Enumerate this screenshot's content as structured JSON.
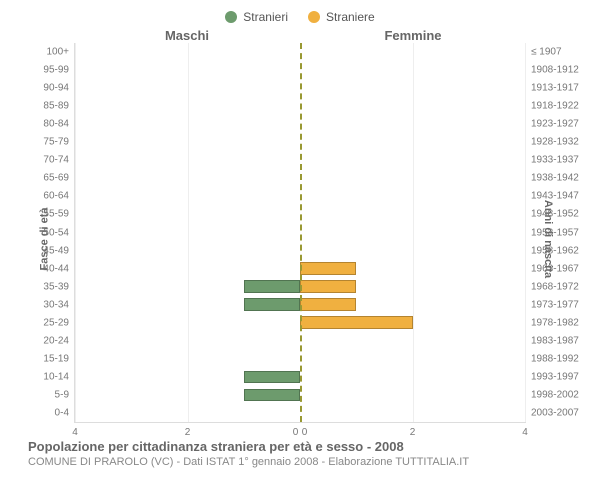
{
  "legend": {
    "male": {
      "label": "Stranieri",
      "color": "#6d9b6d"
    },
    "female": {
      "label": "Straniere",
      "color": "#f0b040"
    }
  },
  "column_titles": {
    "male": "Maschi",
    "female": "Femmine"
  },
  "y_axis_left_title": "Fasce di età",
  "y_axis_right_title": "Anni di nascita",
  "x_axis": {
    "max": 4,
    "ticks": [
      4,
      2,
      0,
      0,
      2,
      4
    ]
  },
  "rows": [
    {
      "age": "100+",
      "birth": "≤ 1907",
      "m": 0,
      "f": 0
    },
    {
      "age": "95-99",
      "birth": "1908-1912",
      "m": 0,
      "f": 0
    },
    {
      "age": "90-94",
      "birth": "1913-1917",
      "m": 0,
      "f": 0
    },
    {
      "age": "85-89",
      "birth": "1918-1922",
      "m": 0,
      "f": 0
    },
    {
      "age": "80-84",
      "birth": "1923-1927",
      "m": 0,
      "f": 0
    },
    {
      "age": "75-79",
      "birth": "1928-1932",
      "m": 0,
      "f": 0
    },
    {
      "age": "70-74",
      "birth": "1933-1937",
      "m": 0,
      "f": 0
    },
    {
      "age": "65-69",
      "birth": "1938-1942",
      "m": 0,
      "f": 0
    },
    {
      "age": "60-64",
      "birth": "1943-1947",
      "m": 0,
      "f": 0
    },
    {
      "age": "55-59",
      "birth": "1948-1952",
      "m": 0,
      "f": 0
    },
    {
      "age": "50-54",
      "birth": "1953-1957",
      "m": 0,
      "f": 0
    },
    {
      "age": "45-49",
      "birth": "1958-1962",
      "m": 0,
      "f": 0
    },
    {
      "age": "40-44",
      "birth": "1963-1967",
      "m": 0,
      "f": 1
    },
    {
      "age": "35-39",
      "birth": "1968-1972",
      "m": 1,
      "f": 1
    },
    {
      "age": "30-34",
      "birth": "1973-1977",
      "m": 1,
      "f": 1
    },
    {
      "age": "25-29",
      "birth": "1978-1982",
      "m": 0,
      "f": 2
    },
    {
      "age": "20-24",
      "birth": "1983-1987",
      "m": 0,
      "f": 0
    },
    {
      "age": "15-19",
      "birth": "1988-1992",
      "m": 0,
      "f": 0
    },
    {
      "age": "10-14",
      "birth": "1993-1997",
      "m": 1,
      "f": 0
    },
    {
      "age": "5-9",
      "birth": "1998-2002",
      "m": 1,
      "f": 0
    },
    {
      "age": "0-4",
      "birth": "2003-2007",
      "m": 0,
      "f": 0
    }
  ],
  "footer": {
    "title": "Popolazione per cittadinanza straniera per età e sesso - 2008",
    "subtitle": "COMUNE DI PRAROLO (VC) - Dati ISTAT 1° gennaio 2008 - Elaborazione TUTTITALIA.IT"
  },
  "style": {
    "background_color": "#ffffff",
    "grid_color": "#eeeeee",
    "center_line_color": "#999933",
    "tick_fontsize": 10,
    "label_fontsize": 11,
    "title_fontsize": 13
  }
}
